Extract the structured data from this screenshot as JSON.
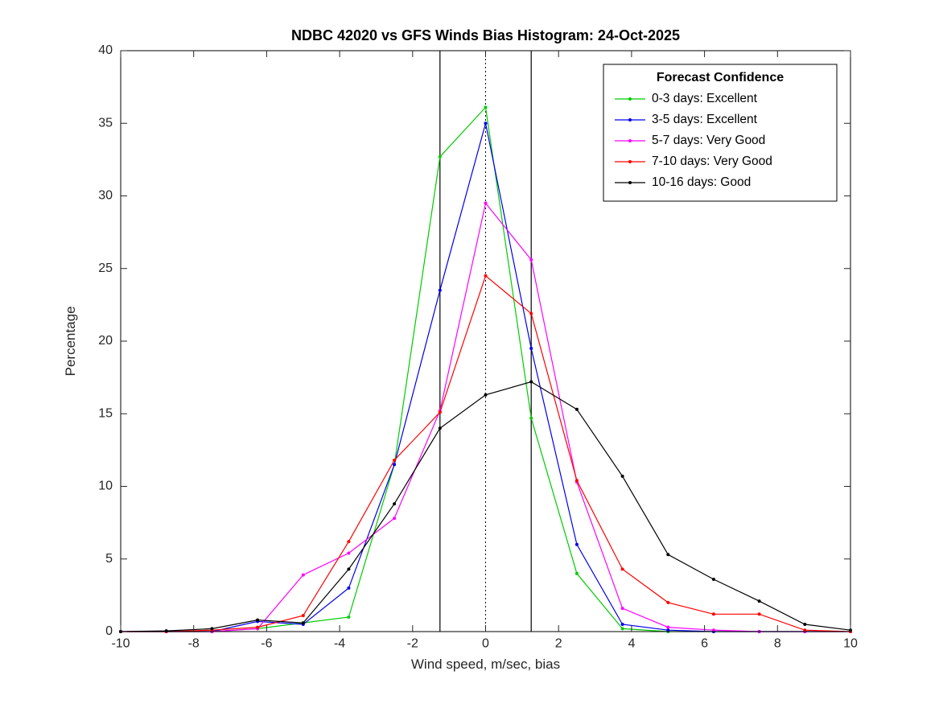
{
  "chart_data": {
    "type": "line",
    "title": "NDBC 42020 vs GFS Winds Bias Histogram: 24-Oct-2025",
    "xlabel": "Wind speed, m/sec, bias",
    "ylabel": "Percentage",
    "xlim": [
      -10,
      10
    ],
    "ylim": [
      0,
      40
    ],
    "xticks": [
      -10,
      -8,
      -6,
      -4,
      -2,
      0,
      2,
      4,
      6,
      8,
      10
    ],
    "yticks": [
      0,
      5,
      10,
      15,
      20,
      25,
      30,
      35,
      40
    ],
    "grid": false,
    "axis_color": "#262626",
    "legend": {
      "title": "Forecast Confidence",
      "position": "top-right"
    },
    "x": [
      -10,
      -8.75,
      -7.5,
      -6.25,
      -5,
      -3.75,
      -2.5,
      -1.25,
      0,
      1.25,
      2.5,
      3.75,
      5,
      6.25,
      7.5,
      8.75,
      10
    ],
    "series": [
      {
        "name": "0-3 days: Excellent",
        "color": "#00cc00",
        "values": [
          0,
          0,
          0,
          0.2,
          0.6,
          1.0,
          11.5,
          32.7,
          36.1,
          14.7,
          4.0,
          0.2,
          0,
          0,
          0,
          0,
          0
        ]
      },
      {
        "name": "3-5 days: Excellent",
        "color": "#0000ee",
        "values": [
          0,
          0,
          0,
          0.7,
          0.5,
          3.0,
          11.5,
          23.5,
          35.0,
          19.5,
          6.0,
          0.5,
          0.1,
          0,
          0,
          0,
          0
        ]
      },
      {
        "name": "5-7 days: Very Good",
        "color": "#ff00ff",
        "values": [
          0,
          0,
          0,
          0.2,
          3.9,
          5.4,
          7.8,
          15.2,
          29.5,
          25.6,
          10.3,
          1.6,
          0.3,
          0.1,
          0,
          0,
          0
        ]
      },
      {
        "name": "7-10 days: Very Good",
        "color": "#ff0000",
        "values": [
          0,
          0,
          0.1,
          0.3,
          1.1,
          6.2,
          11.8,
          15.1,
          24.5,
          21.9,
          10.4,
          4.3,
          2.0,
          1.2,
          1.2,
          0.1,
          0
        ]
      },
      {
        "name": "10-16 days: Good",
        "color": "#000000",
        "values": [
          0,
          0.05,
          0.2,
          0.8,
          0.6,
          4.3,
          8.8,
          14.0,
          16.3,
          17.2,
          15.3,
          10.7,
          5.3,
          3.6,
          2.1,
          0.5,
          0.1
        ]
      }
    ],
    "reference_lines": [
      {
        "x": -1.25,
        "style": "solid",
        "color": "#000000"
      },
      {
        "x": 0,
        "style": "dotted",
        "color": "#000000"
      },
      {
        "x": 1.25,
        "style": "solid",
        "color": "#000000"
      }
    ]
  }
}
